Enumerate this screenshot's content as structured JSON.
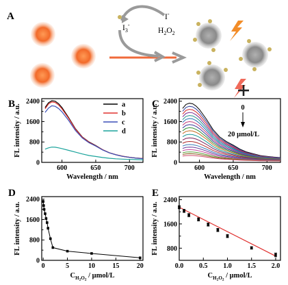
{
  "panel_labels": [
    "A",
    "B",
    "C",
    "D",
    "E"
  ],
  "scheme": {
    "iodide": "I",
    "iodide_charge": "-",
    "triiodide": "I",
    "triiodide_sub": "3",
    "triiodide_charge": "-",
    "h2o2": "H",
    "h2o2_sub1": "2",
    "h2o2_mid": "O",
    "h2o2_sub2": "2",
    "colors": {
      "orange_dot": "#f05a1e",
      "gray_dot": "#8a8a8a",
      "gold_bead": "#c9b25f",
      "arrow_gray": "#9a9a9a",
      "arrow_orange": "#f06a3a",
      "bolt": "#f28c28",
      "cross": "#222222"
    }
  },
  "chart_data": [
    {
      "id": "B",
      "type": "line",
      "xlabel": "Wavelength / nm",
      "ylabel": "FL intensity / a.u.",
      "xlim": [
        570,
        720
      ],
      "ylim": [
        0,
        2500
      ],
      "xticks": [
        600,
        650,
        700
      ],
      "yticks": [
        0,
        800,
        1600,
        2400
      ],
      "yticks_mid": [
        400,
        1200,
        2000
      ],
      "legend": "top-right",
      "series": [
        {
          "name": "a",
          "color": "#000000",
          "x": [
            575,
            580,
            585,
            590,
            595,
            600,
            610,
            620,
            630,
            640,
            650,
            660,
            670,
            680,
            690,
            700,
            710,
            720
          ],
          "y": [
            2150,
            2340,
            2420,
            2400,
            2300,
            2150,
            1750,
            1320,
            1000,
            800,
            660,
            500,
            380,
            300,
            240,
            200,
            170,
            150
          ]
        },
        {
          "name": "b",
          "color": "#e0302e",
          "x": [
            575,
            580,
            585,
            590,
            595,
            600,
            610,
            620,
            630,
            640,
            650,
            660,
            670,
            680,
            690,
            700,
            710,
            720
          ],
          "y": [
            2100,
            2290,
            2370,
            2350,
            2250,
            2100,
            1720,
            1300,
            990,
            790,
            650,
            500,
            380,
            300,
            240,
            200,
            170,
            150
          ]
        },
        {
          "name": "c",
          "color": "#3a4fb8",
          "x": [
            575,
            580,
            585,
            590,
            595,
            600,
            610,
            620,
            630,
            640,
            650,
            660,
            670,
            680,
            690,
            700,
            710,
            720
          ],
          "y": [
            1960,
            2130,
            2220,
            2200,
            2110,
            1980,
            1640,
            1250,
            960,
            770,
            640,
            490,
            375,
            295,
            235,
            195,
            165,
            145
          ]
        },
        {
          "name": "d",
          "color": "#1aa39b",
          "x": [
            575,
            580,
            585,
            590,
            595,
            600,
            610,
            620,
            630,
            640,
            650,
            660,
            670,
            680,
            690,
            700,
            710,
            720
          ],
          "y": [
            520,
            570,
            600,
            595,
            570,
            540,
            470,
            400,
            330,
            270,
            230,
            190,
            160,
            140,
            125,
            115,
            108,
            100
          ]
        }
      ]
    },
    {
      "id": "C",
      "type": "line",
      "xlabel": "Wavelength / nm",
      "ylabel": "FL intensity / a.u.",
      "xlim": [
        570,
        720
      ],
      "ylim": [
        0,
        2500
      ],
      "xticks": [
        600,
        650,
        700
      ],
      "yticks": [
        0,
        800,
        1600,
        2400
      ],
      "yticks_mid": [
        400,
        1200,
        2000
      ],
      "annotation_top": "0",
      "annotation_bottom": "20 μmol/L",
      "peak_values": [
        2320,
        2200,
        2080,
        1960,
        1840,
        1720,
        1600,
        1480,
        1360,
        1240,
        1100,
        960,
        820,
        700,
        600,
        500,
        410,
        340,
        270
      ],
      "series_colors": [
        "#000000",
        "#2e3f9e",
        "#d22c2c",
        "#7a2a8f",
        "#1f8f8a",
        "#1f6fb5",
        "#c03a7a",
        "#3a3a9a",
        "#2e8f3a",
        "#c46a1e",
        "#1a9a9a",
        "#7a1f5a",
        "#b02a2a",
        "#3a7ab5",
        "#6a3a9a",
        "#c4469a",
        "#5aa03a",
        "#8a5a1e",
        "#d04a6a"
      ]
    },
    {
      "id": "D",
      "type": "scatter",
      "xlabel": "C",
      "xlabel_sub": "H2O2",
      "xlabel_sub_main": "H",
      "xlabel_sub_2a": "2",
      "xlabel_sub_o": "O",
      "xlabel_sub_2b": "2",
      "xlabel_unit": " / μmol/L",
      "ylabel": "FL intensity / a.u.",
      "xlim": [
        -0.3,
        20.6
      ],
      "ylim": [
        0,
        2500
      ],
      "xticks": [
        0,
        5,
        10,
        15,
        20
      ],
      "yticks": [
        0,
        800,
        1600,
        2400
      ],
      "yticks_mid": [
        400,
        1200,
        2000
      ],
      "x": [
        0,
        0.1,
        0.2,
        0.4,
        0.6,
        0.8,
        1.0,
        1.5,
        2.0,
        5.0,
        10.0,
        20.0
      ],
      "y": [
        2310,
        2150,
        2000,
        1830,
        1640,
        1480,
        1260,
        850,
        500,
        360,
        270,
        100
      ],
      "yerr": [
        70,
        60,
        60,
        55,
        55,
        55,
        50,
        50,
        45,
        40,
        40,
        40
      ]
    },
    {
      "id": "E",
      "type": "scatter",
      "xlabel": "C",
      "xlabel_sub_main": "H",
      "xlabel_sub_2a": "2",
      "xlabel_sub_o": "O",
      "xlabel_sub_2b": "2",
      "xlabel_unit": " / μmol/L",
      "ylabel": "FL intensity / a.u.",
      "xlim": [
        0,
        2.1
      ],
      "ylim": [
        400,
        2500
      ],
      "xticks": [
        0.0,
        0.5,
        1.0,
        1.5,
        2.0
      ],
      "yticks": [
        800,
        1600,
        2400
      ],
      "yticks_mid": [
        1200,
        2000
      ],
      "x": [
        0,
        0.1,
        0.2,
        0.4,
        0.6,
        0.8,
        1.0,
        1.5,
        2.0
      ],
      "y": [
        2150,
        2030,
        1890,
        1750,
        1580,
        1400,
        1200,
        810,
        580
      ],
      "yerr": [
        50,
        50,
        50,
        50,
        50,
        50,
        50,
        40,
        60
      ],
      "fit": {
        "x": [
          0,
          2.0
        ],
        "y": [
          2150,
          540
        ],
        "color": "#e0302e"
      }
    }
  ]
}
